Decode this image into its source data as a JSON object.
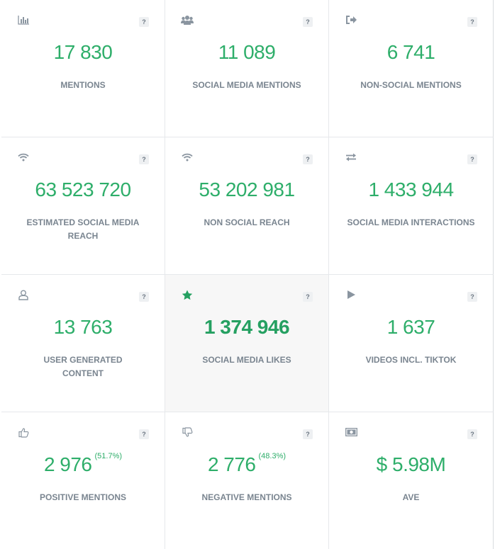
{
  "help_label": "?",
  "stats": [
    {
      "icon": "bar-chart-icon",
      "value": "17 830",
      "label": "MENTIONS"
    },
    {
      "icon": "users-icon",
      "value": "11 089",
      "label": "SOCIAL MEDIA MENTIONS"
    },
    {
      "icon": "sign-out-icon",
      "value": "6 741",
      "label": "NON-SOCIAL MENTIONS"
    },
    {
      "icon": "wifi-icon",
      "value": "63 523 720",
      "label": "ESTIMATED SOCIAL MEDIA REACH"
    },
    {
      "icon": "wifi-icon",
      "value": "53 202 981",
      "label": "NON SOCIAL REACH"
    },
    {
      "icon": "exchange-icon",
      "value": "1 433 944",
      "label": "SOCIAL MEDIA INTERACTIONS"
    },
    {
      "icon": "user-icon",
      "value": "13 763",
      "label": "USER GENERATED CONTENT"
    },
    {
      "icon": "star-icon",
      "value": "1 374 946",
      "label": "SOCIAL MEDIA LIKES"
    },
    {
      "icon": "play-icon",
      "value": "1 637",
      "label": "VIDEOS INCL. TIKTOK"
    },
    {
      "icon": "thumbs-up-icon",
      "value": "2 976",
      "pct": "(51.7%)",
      "label": "POSITIVE MENTIONS"
    },
    {
      "icon": "thumbs-down-icon",
      "value": "2 776",
      "pct": "(48.3%)",
      "label": "NEGATIVE MENTIONS"
    },
    {
      "icon": "money-icon",
      "value": "$ 5.98M",
      "label": "AVE"
    }
  ],
  "colors": {
    "value_green": "#2eae6a",
    "star_green": "#25a061",
    "icon_grey": "#8a95a0"
  }
}
